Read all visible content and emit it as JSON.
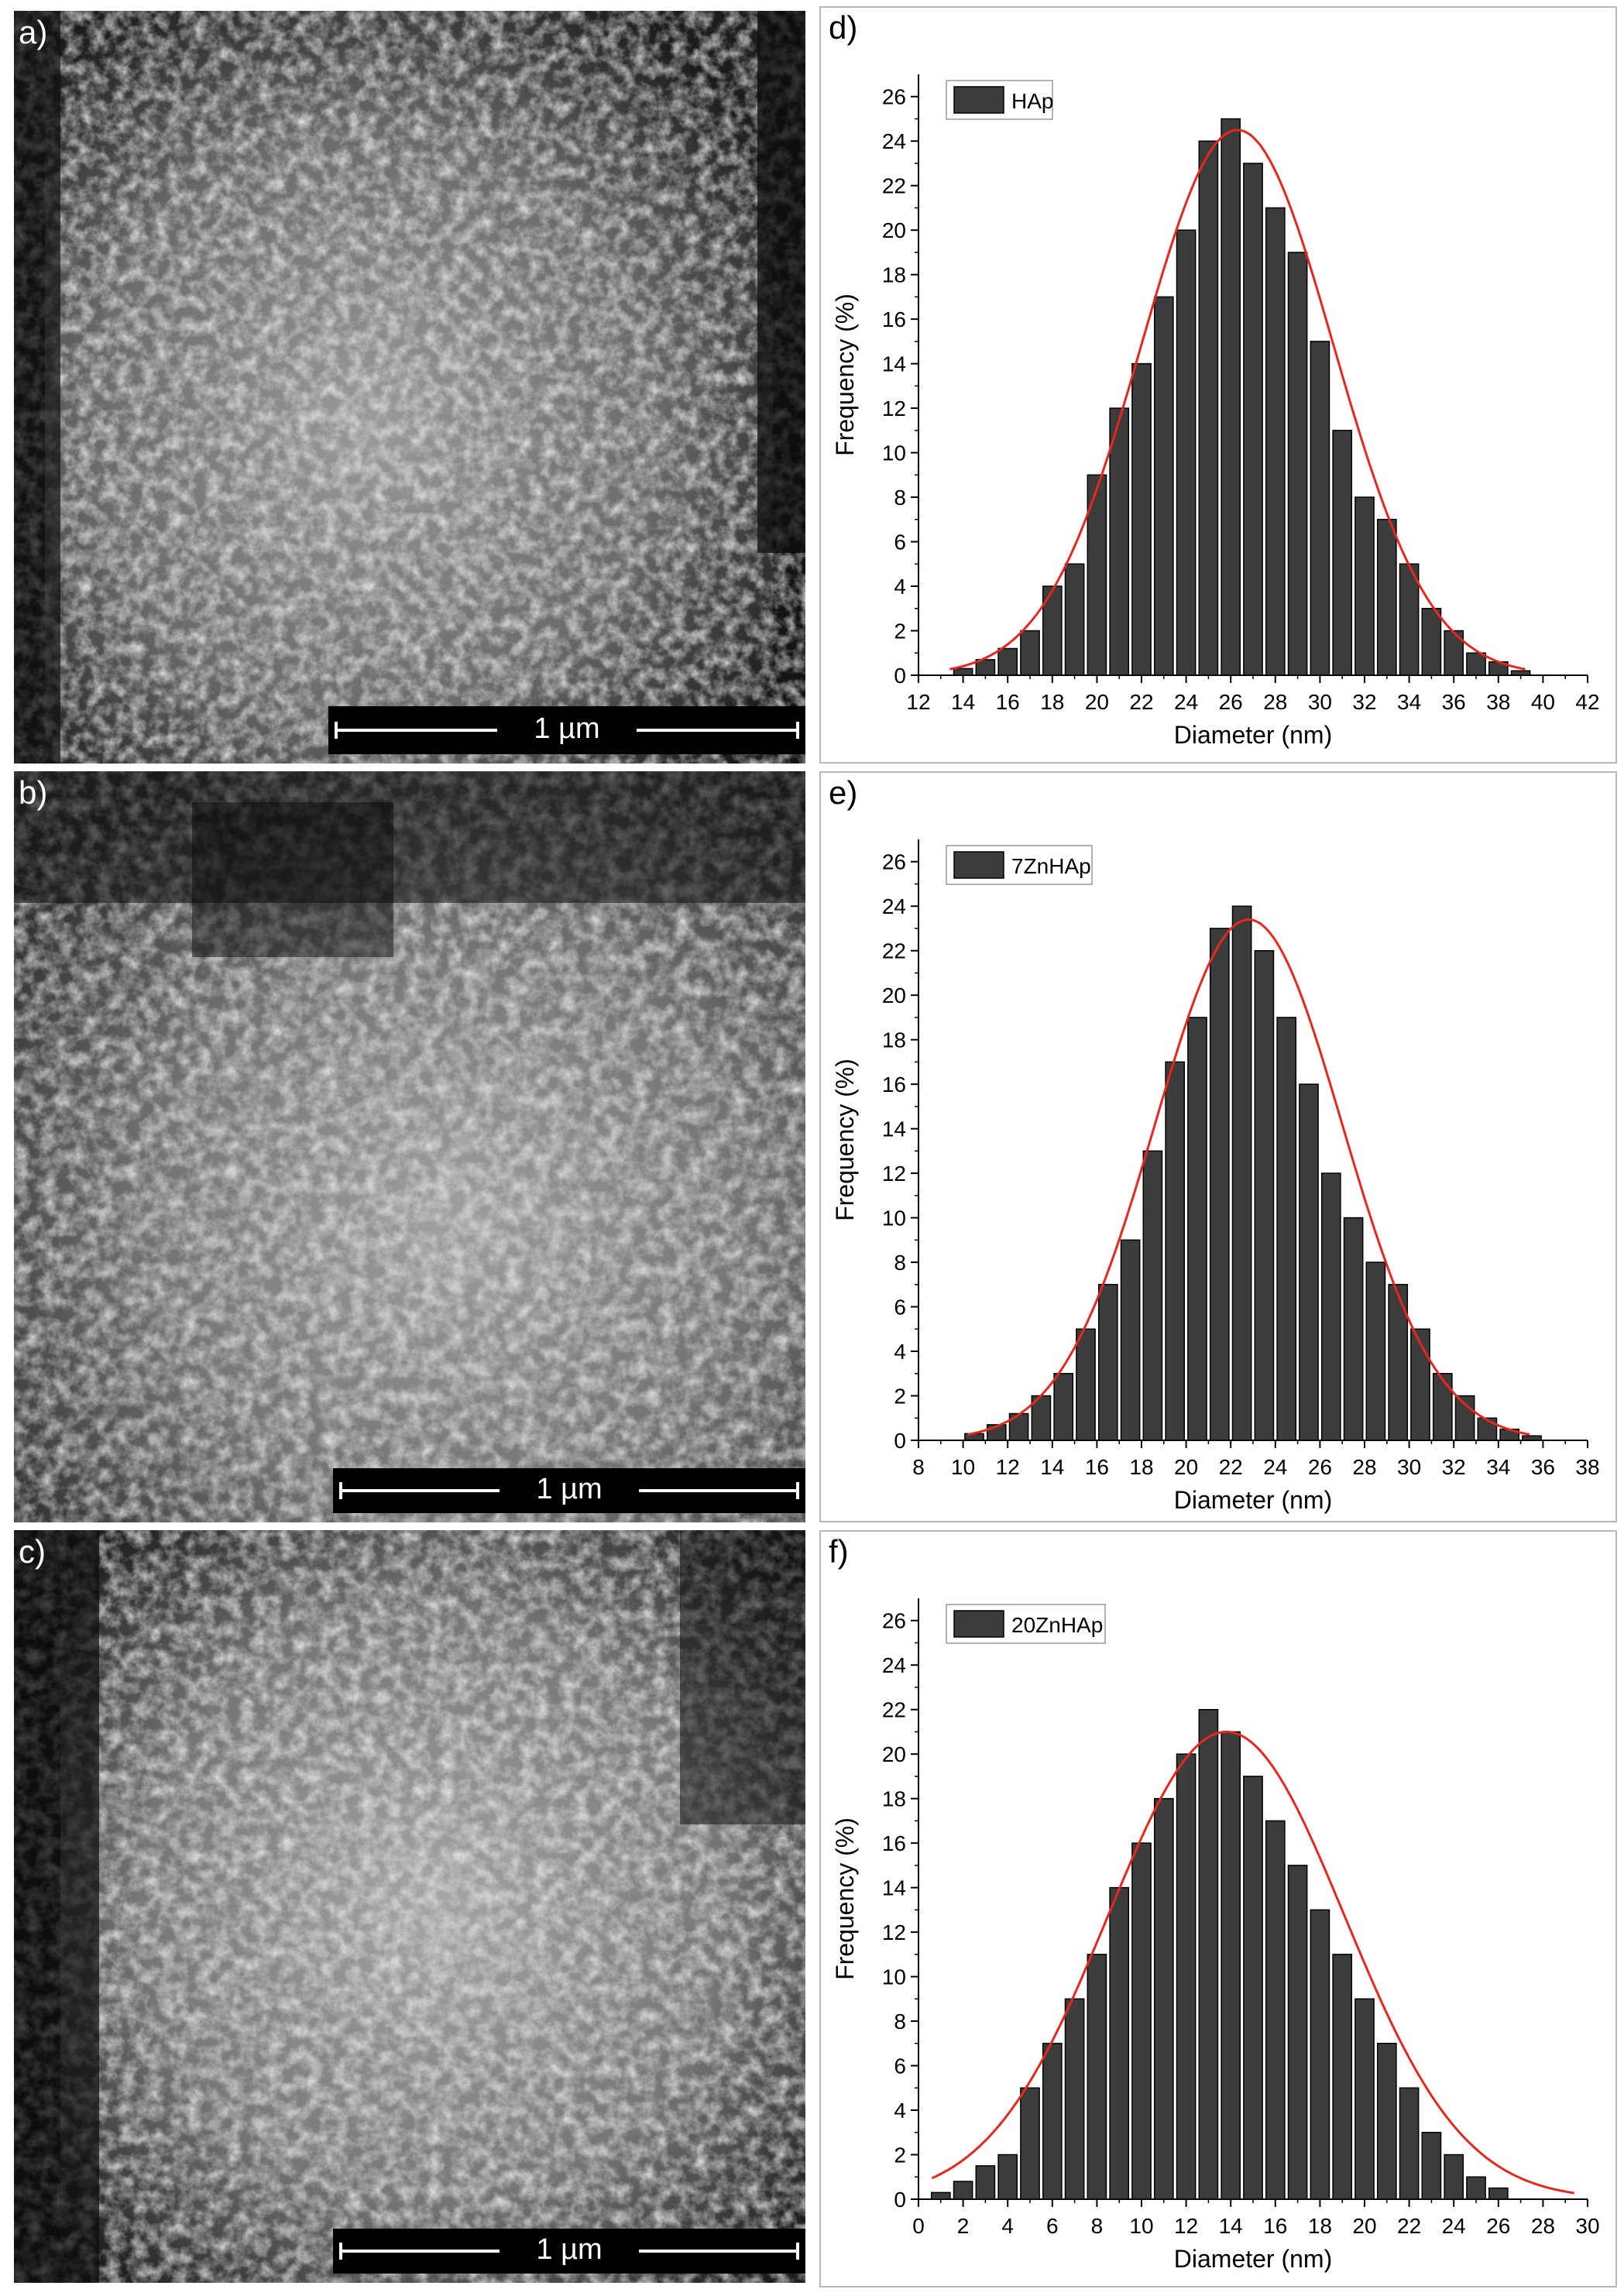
{
  "sem_panels": [
    {
      "letter": "a)",
      "scale": "1 µm"
    },
    {
      "letter": "b)",
      "scale": "1 µm"
    },
    {
      "letter": "c)",
      "scale": "1 µm"
    }
  ],
  "colors": {
    "bar_fill": "#3c3c3c",
    "bar_stroke": "#000000",
    "fit_curve": "#e8261c"
  },
  "chart_data": [
    {
      "type": "bar",
      "panel": "d)",
      "legend": "HAp",
      "xlabel": "Diameter (nm)",
      "ylabel": "Frequency (%)",
      "xlim": [
        12,
        42
      ],
      "ylim": [
        0,
        27
      ],
      "xticks": [
        12,
        14,
        16,
        18,
        20,
        22,
        24,
        26,
        28,
        30,
        32,
        34,
        36,
        38,
        40,
        42
      ],
      "yticks": [
        0,
        2,
        4,
        6,
        8,
        10,
        12,
        14,
        16,
        18,
        20,
        22,
        24,
        26
      ],
      "bin_width": 1,
      "x": [
        14,
        15,
        16,
        17,
        18,
        19,
        20,
        21,
        22,
        23,
        24,
        25,
        26,
        27,
        28,
        29,
        30,
        31,
        32,
        33,
        34,
        35,
        36,
        37,
        38,
        39
      ],
      "values": [
        0.3,
        0.7,
        1.2,
        2,
        4,
        5,
        9,
        12,
        14,
        17,
        20,
        24,
        25,
        23,
        21,
        19,
        15,
        11,
        8,
        7,
        5,
        3,
        2,
        1,
        0.6,
        0.2
      ],
      "fit": {
        "type": "gaussian",
        "peak": 24.5,
        "center": 26.3,
        "sigma": 4.3
      }
    },
    {
      "type": "bar",
      "panel": "e)",
      "legend": "7ZnHAp",
      "xlabel": "Diameter (nm)",
      "ylabel": "Frequency (%)",
      "xlim": [
        8,
        38
      ],
      "ylim": [
        0,
        27
      ],
      "xticks": [
        8,
        10,
        12,
        14,
        16,
        18,
        20,
        22,
        24,
        26,
        28,
        30,
        32,
        34,
        36,
        38
      ],
      "yticks": [
        0,
        2,
        4,
        6,
        8,
        10,
        12,
        14,
        16,
        18,
        20,
        22,
        24,
        26
      ],
      "bin_width": 1,
      "x": [
        10.5,
        11.5,
        12.5,
        13.5,
        14.5,
        15.5,
        16.5,
        17.5,
        18.5,
        19.5,
        20.5,
        21.5,
        22.5,
        23.5,
        24.5,
        25.5,
        26.5,
        27.5,
        28.5,
        29.5,
        30.5,
        31.5,
        32.5,
        33.5,
        34.5,
        35.5
      ],
      "values": [
        0.3,
        0.7,
        1.2,
        2,
        3,
        5,
        7,
        9,
        13,
        17,
        19,
        23,
        24,
        22,
        19,
        16,
        12,
        10,
        8,
        7,
        5,
        3,
        2,
        1,
        0.5,
        0.2
      ],
      "fit": {
        "type": "gaussian",
        "peak": 23.4,
        "center": 22.8,
        "sigma": 4.2
      }
    },
    {
      "type": "bar",
      "panel": "f)",
      "legend": "20ZnHAp",
      "xlabel": "Diameter (nm)",
      "ylabel": "Frequency (%)",
      "xlim": [
        0,
        30
      ],
      "ylim": [
        0,
        27
      ],
      "xticks": [
        0,
        2,
        4,
        6,
        8,
        10,
        12,
        14,
        16,
        18,
        20,
        22,
        24,
        26,
        28,
        30
      ],
      "yticks": [
        0,
        2,
        4,
        6,
        8,
        10,
        12,
        14,
        16,
        18,
        20,
        22,
        24,
        26
      ],
      "bin_width": 1,
      "x": [
        1,
        2,
        3,
        4,
        5,
        6,
        7,
        8,
        9,
        10,
        11,
        12,
        13,
        14,
        15,
        16,
        17,
        18,
        19,
        20,
        21,
        22,
        23,
        24,
        25,
        26
      ],
      "values": [
        0.3,
        0.8,
        1.5,
        2,
        5,
        7,
        9,
        11,
        14,
        16,
        18,
        20,
        22,
        21,
        19,
        17,
        15,
        13,
        11,
        9,
        7,
        5,
        3,
        2,
        1,
        0.5
      ],
      "fit": {
        "type": "gaussian",
        "peak": 21,
        "center": 13.8,
        "sigma": 5.3
      }
    }
  ]
}
